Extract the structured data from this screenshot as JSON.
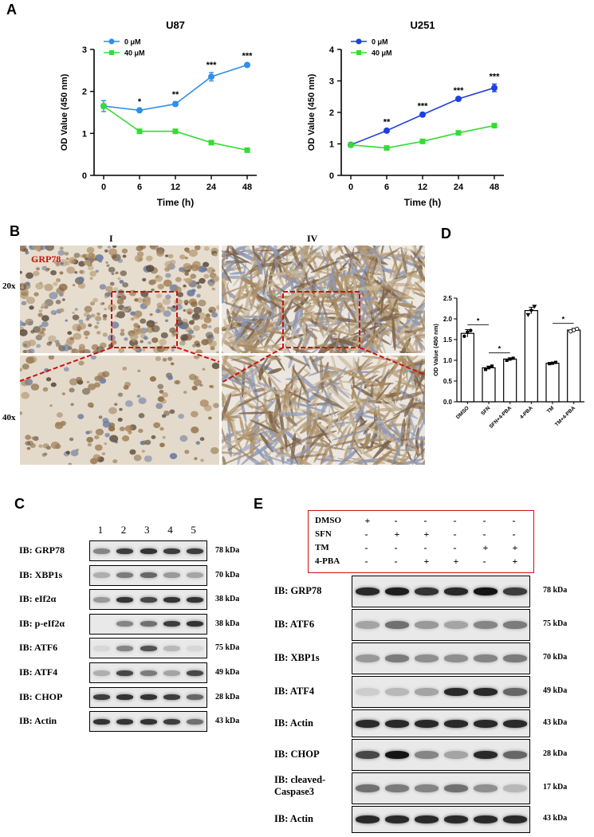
{
  "panels": {
    "A": "A",
    "B": "B",
    "C": "C",
    "D": "D",
    "E": "E"
  },
  "colors": {
    "control": "#1f3fe0",
    "control_light": "#2f8ee6",
    "treated": "#33dd33",
    "box_red": "#cc1111",
    "tissue_i": "#e6ddcf",
    "tissue_iv": "#ece8e2"
  },
  "chart_data": [
    {
      "type": "line",
      "title": "U87",
      "xlabel": "Time (h)",
      "ylabel": "OD Value (450 nm)",
      "categories": [
        "0",
        "6",
        "12",
        "24",
        "48"
      ],
      "ylim": [
        0,
        3
      ],
      "yticks": [
        "0",
        "1",
        "2",
        "3"
      ],
      "legend_position": "top-left",
      "series": [
        {
          "name": "0 μM",
          "color": "#2f8ee6",
          "marker": "circle",
          "values": [
            1.65,
            1.55,
            1.7,
            2.35,
            2.63
          ],
          "errors": [
            0.13,
            0.03,
            0.05,
            0.1,
            0.04
          ]
        },
        {
          "name": "40 μM",
          "color": "#33dd33",
          "marker": "square",
          "values": [
            1.65,
            1.05,
            1.05,
            0.78,
            0.6
          ],
          "errors": [
            0.02,
            0.03,
            0.02,
            0.02,
            0.02
          ]
        }
      ],
      "annotations": [
        "",
        "*",
        "**",
        "***",
        "***"
      ]
    },
    {
      "type": "line",
      "title": "U251",
      "xlabel": "Time (h)",
      "ylabel": "OD Value (450 nm)",
      "categories": [
        "0",
        "6",
        "12",
        "24",
        "48"
      ],
      "ylim": [
        0,
        4
      ],
      "yticks": [
        "0",
        "1",
        "2",
        "3",
        "4"
      ],
      "legend_position": "top-left",
      "series": [
        {
          "name": "0 μM",
          "color": "#1f3fe0",
          "marker": "circle",
          "values": [
            0.97,
            1.42,
            1.93,
            2.43,
            2.78
          ],
          "errors": [
            0.03,
            0.03,
            0.03,
            0.03,
            0.12
          ]
        },
        {
          "name": "40 μM",
          "color": "#33dd33",
          "marker": "square",
          "values": [
            0.97,
            0.87,
            1.08,
            1.35,
            1.58
          ],
          "errors": [
            0.02,
            0.02,
            0.03,
            0.03,
            0.04
          ]
        }
      ],
      "annotations": [
        "",
        "**",
        "***",
        "***",
        "***"
      ]
    },
    {
      "type": "bar",
      "ylabel": "OD Value (450 nm)",
      "categories": [
        "DMSO",
        "SFN",
        "SFN+4-PBA",
        "4-PBA",
        "TM",
        "TM+4-PBA"
      ],
      "values": [
        1.65,
        0.82,
        1.03,
        2.2,
        0.93,
        1.73
      ],
      "errors": [
        0.09,
        0.04,
        0.03,
        0.08,
        0.02,
        0.04
      ],
      "ylim": [
        0,
        2.5
      ],
      "yticks": [
        "0.0",
        "0.5",
        "1.0",
        "1.5",
        "2.0",
        "2.5"
      ],
      "points": [
        [
          1.58,
          1.68,
          1.72
        ],
        [
          0.78,
          0.82,
          0.86
        ],
        [
          1.0,
          1.03,
          1.05
        ],
        [
          2.1,
          2.2,
          2.3
        ],
        [
          0.92,
          0.93,
          0.95
        ],
        [
          1.7,
          1.73,
          1.76
        ]
      ],
      "significance": [
        {
          "from": "DMSO",
          "to": "SFN",
          "label": "*"
        },
        {
          "from": "SFN",
          "to": "SFN+4-PBA",
          "label": "*"
        },
        {
          "from": "TM",
          "to": "TM+4-PBA",
          "label": "*"
        }
      ]
    }
  ],
  "panel_b": {
    "columns": [
      "I",
      "IV"
    ],
    "rows": [
      "20x",
      "40x"
    ],
    "stain_label": "GRP78"
  },
  "panel_c": {
    "lanes": [
      "1",
      "2",
      "3",
      "4",
      "5"
    ],
    "blots": [
      {
        "label": "IB:  GRP78",
        "kda": "78 kDa",
        "bands": [
          0.45,
          0.8,
          0.85,
          0.8,
          0.8
        ]
      },
      {
        "label": "IB:  XBP1s",
        "kda": "70 kDa",
        "bands": [
          0.25,
          0.5,
          0.6,
          0.35,
          0.3
        ]
      },
      {
        "label": "IB:  eIf2α",
        "kda": "38 kDa",
        "bands": [
          0.35,
          0.85,
          0.75,
          0.85,
          0.85
        ]
      },
      {
        "label": "IB:  p-eIf2α",
        "kda": "38 kDa",
        "bands": [
          0.0,
          0.45,
          0.55,
          0.8,
          0.85
        ]
      },
      {
        "label": "IB:  ATF6",
        "kda": "75 kDa",
        "bands": [
          0.05,
          0.45,
          0.7,
          0.2,
          0.05
        ]
      },
      {
        "label": "IB:  ATF4",
        "kda": "49 kDa",
        "bands": [
          0.25,
          0.75,
          0.5,
          0.3,
          0.75
        ]
      },
      {
        "label": "IB:  CHOP",
        "kda": "28 kDa",
        "bands": [
          0.8,
          0.85,
          0.85,
          0.8,
          0.6
        ]
      },
      {
        "label": "IB:  Actin",
        "kda": "43 kDa",
        "bands": [
          0.85,
          0.85,
          0.85,
          0.8,
          0.55
        ]
      }
    ]
  },
  "panel_e": {
    "conditions": [
      {
        "name": "DMSO",
        "marks": [
          "+",
          "-",
          "-",
          "-",
          "-",
          "-"
        ]
      },
      {
        "name": "SFN",
        "marks": [
          "-",
          "+",
          "+",
          "-",
          "-",
          "-"
        ]
      },
      {
        "name": "TM",
        "marks": [
          "-",
          "-",
          "-",
          "-",
          "+",
          "+"
        ]
      },
      {
        "name": "4-PBA",
        "marks": [
          "-",
          "-",
          "+",
          "+",
          "-",
          "+"
        ]
      }
    ],
    "blots": [
      {
        "label": "IB: GRP78",
        "kda": "78 kDa",
        "bands": [
          0.9,
          0.95,
          0.85,
          0.9,
          1.0,
          0.8
        ]
      },
      {
        "label": "IB: ATF6",
        "kda": "75 kDa",
        "bands": [
          0.3,
          0.55,
          0.35,
          0.3,
          0.45,
          0.5
        ]
      },
      {
        "label": "IB: XBP1s",
        "kda": "70 kDa",
        "bands": [
          0.35,
          0.5,
          0.4,
          0.4,
          0.45,
          0.5
        ]
      },
      {
        "label": "IB: ATF4",
        "kda": "49 kDa",
        "bands": [
          0.1,
          0.2,
          0.3,
          0.9,
          0.9,
          0.6
        ]
      },
      {
        "label": "IB: Actin",
        "kda": "43 kDa",
        "bands": [
          0.9,
          0.9,
          0.9,
          0.9,
          0.9,
          0.9
        ]
      },
      {
        "label": "IB: CHOP",
        "kda": "28 kDa",
        "bands": [
          0.75,
          1.0,
          0.45,
          0.3,
          0.9,
          0.6
        ]
      },
      {
        "label": "IB: cleaved-\nCaspase3",
        "kda": "17 kDa",
        "bands": [
          0.55,
          0.5,
          0.45,
          0.55,
          0.4,
          0.2
        ]
      },
      {
        "label": "IB: Actin",
        "kda": "43 kDa",
        "bands": [
          0.9,
          0.9,
          0.9,
          0.9,
          0.9,
          0.9
        ]
      }
    ]
  }
}
